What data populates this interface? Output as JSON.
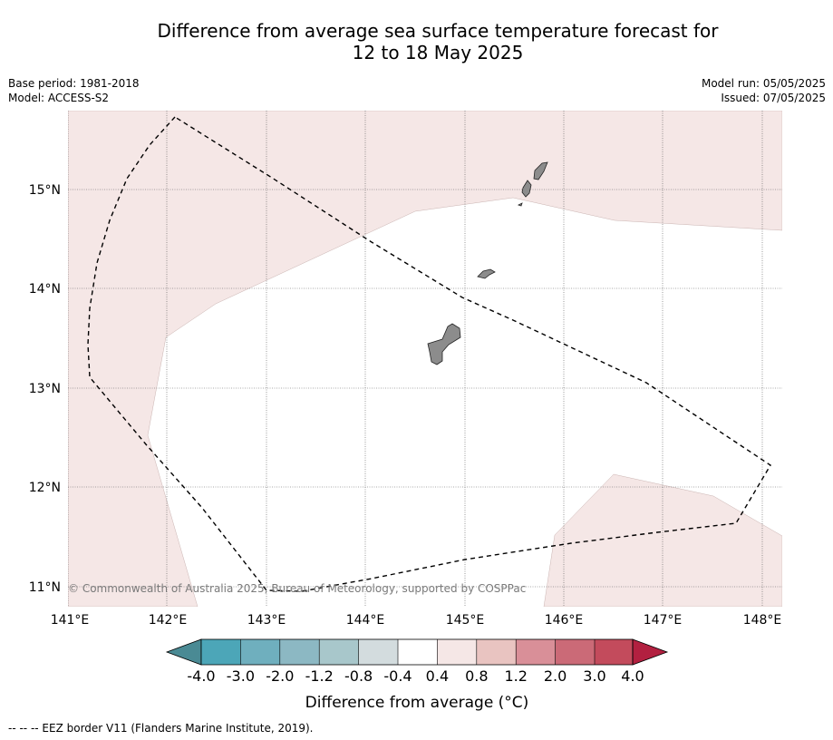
{
  "title": {
    "line1": "Difference from average sea surface temperature forecast for",
    "line2": "12 to 18 May 2025"
  },
  "meta": {
    "base_period": "Base period: 1981-2018",
    "model": "Model: ACCESS-S2",
    "model_run": "Model run: 05/05/2025",
    "issued": "Issued: 07/05/2025"
  },
  "map": {
    "lon_range": [
      141.0,
      148.2
    ],
    "lat_range": [
      10.8,
      15.8
    ],
    "lon_ticks": [
      "141°E",
      "142°E",
      "143°E",
      "144°E",
      "145°E",
      "146°E",
      "147°E",
      "148°E"
    ],
    "lat_ticks": [
      "11°N",
      "12°N",
      "13°N",
      "14°N",
      "15°N"
    ],
    "ocean_color": "#ffffff",
    "anomaly_color": "#f5e7e6",
    "land_color": "#8c8c8c",
    "copyright": "© Commonwealth of Australia 2025, Bureau of Meteorology, supported by COSPPac"
  },
  "colorbar": {
    "colors": [
      "#4a8a94",
      "#4ca6b8",
      "#6fafbe",
      "#8cb8c3",
      "#a8c7cb",
      "#d3dcde",
      "#ffffff",
      "#f5e7e6",
      "#e9c4c1",
      "#d98f98",
      "#cb6a77",
      "#c34b5c",
      "#b22040"
    ],
    "labels": [
      "-4.0",
      "-3.0",
      "-2.0",
      "-1.2",
      "-0.8",
      "-0.4",
      "0.4",
      "0.8",
      "1.2",
      "2.0",
      "3.0",
      "4.0"
    ],
    "title": "Difference from average (°C)"
  },
  "footer": "--  --  -- EEZ border V11 (Flanders Marine Institute, 2019)."
}
